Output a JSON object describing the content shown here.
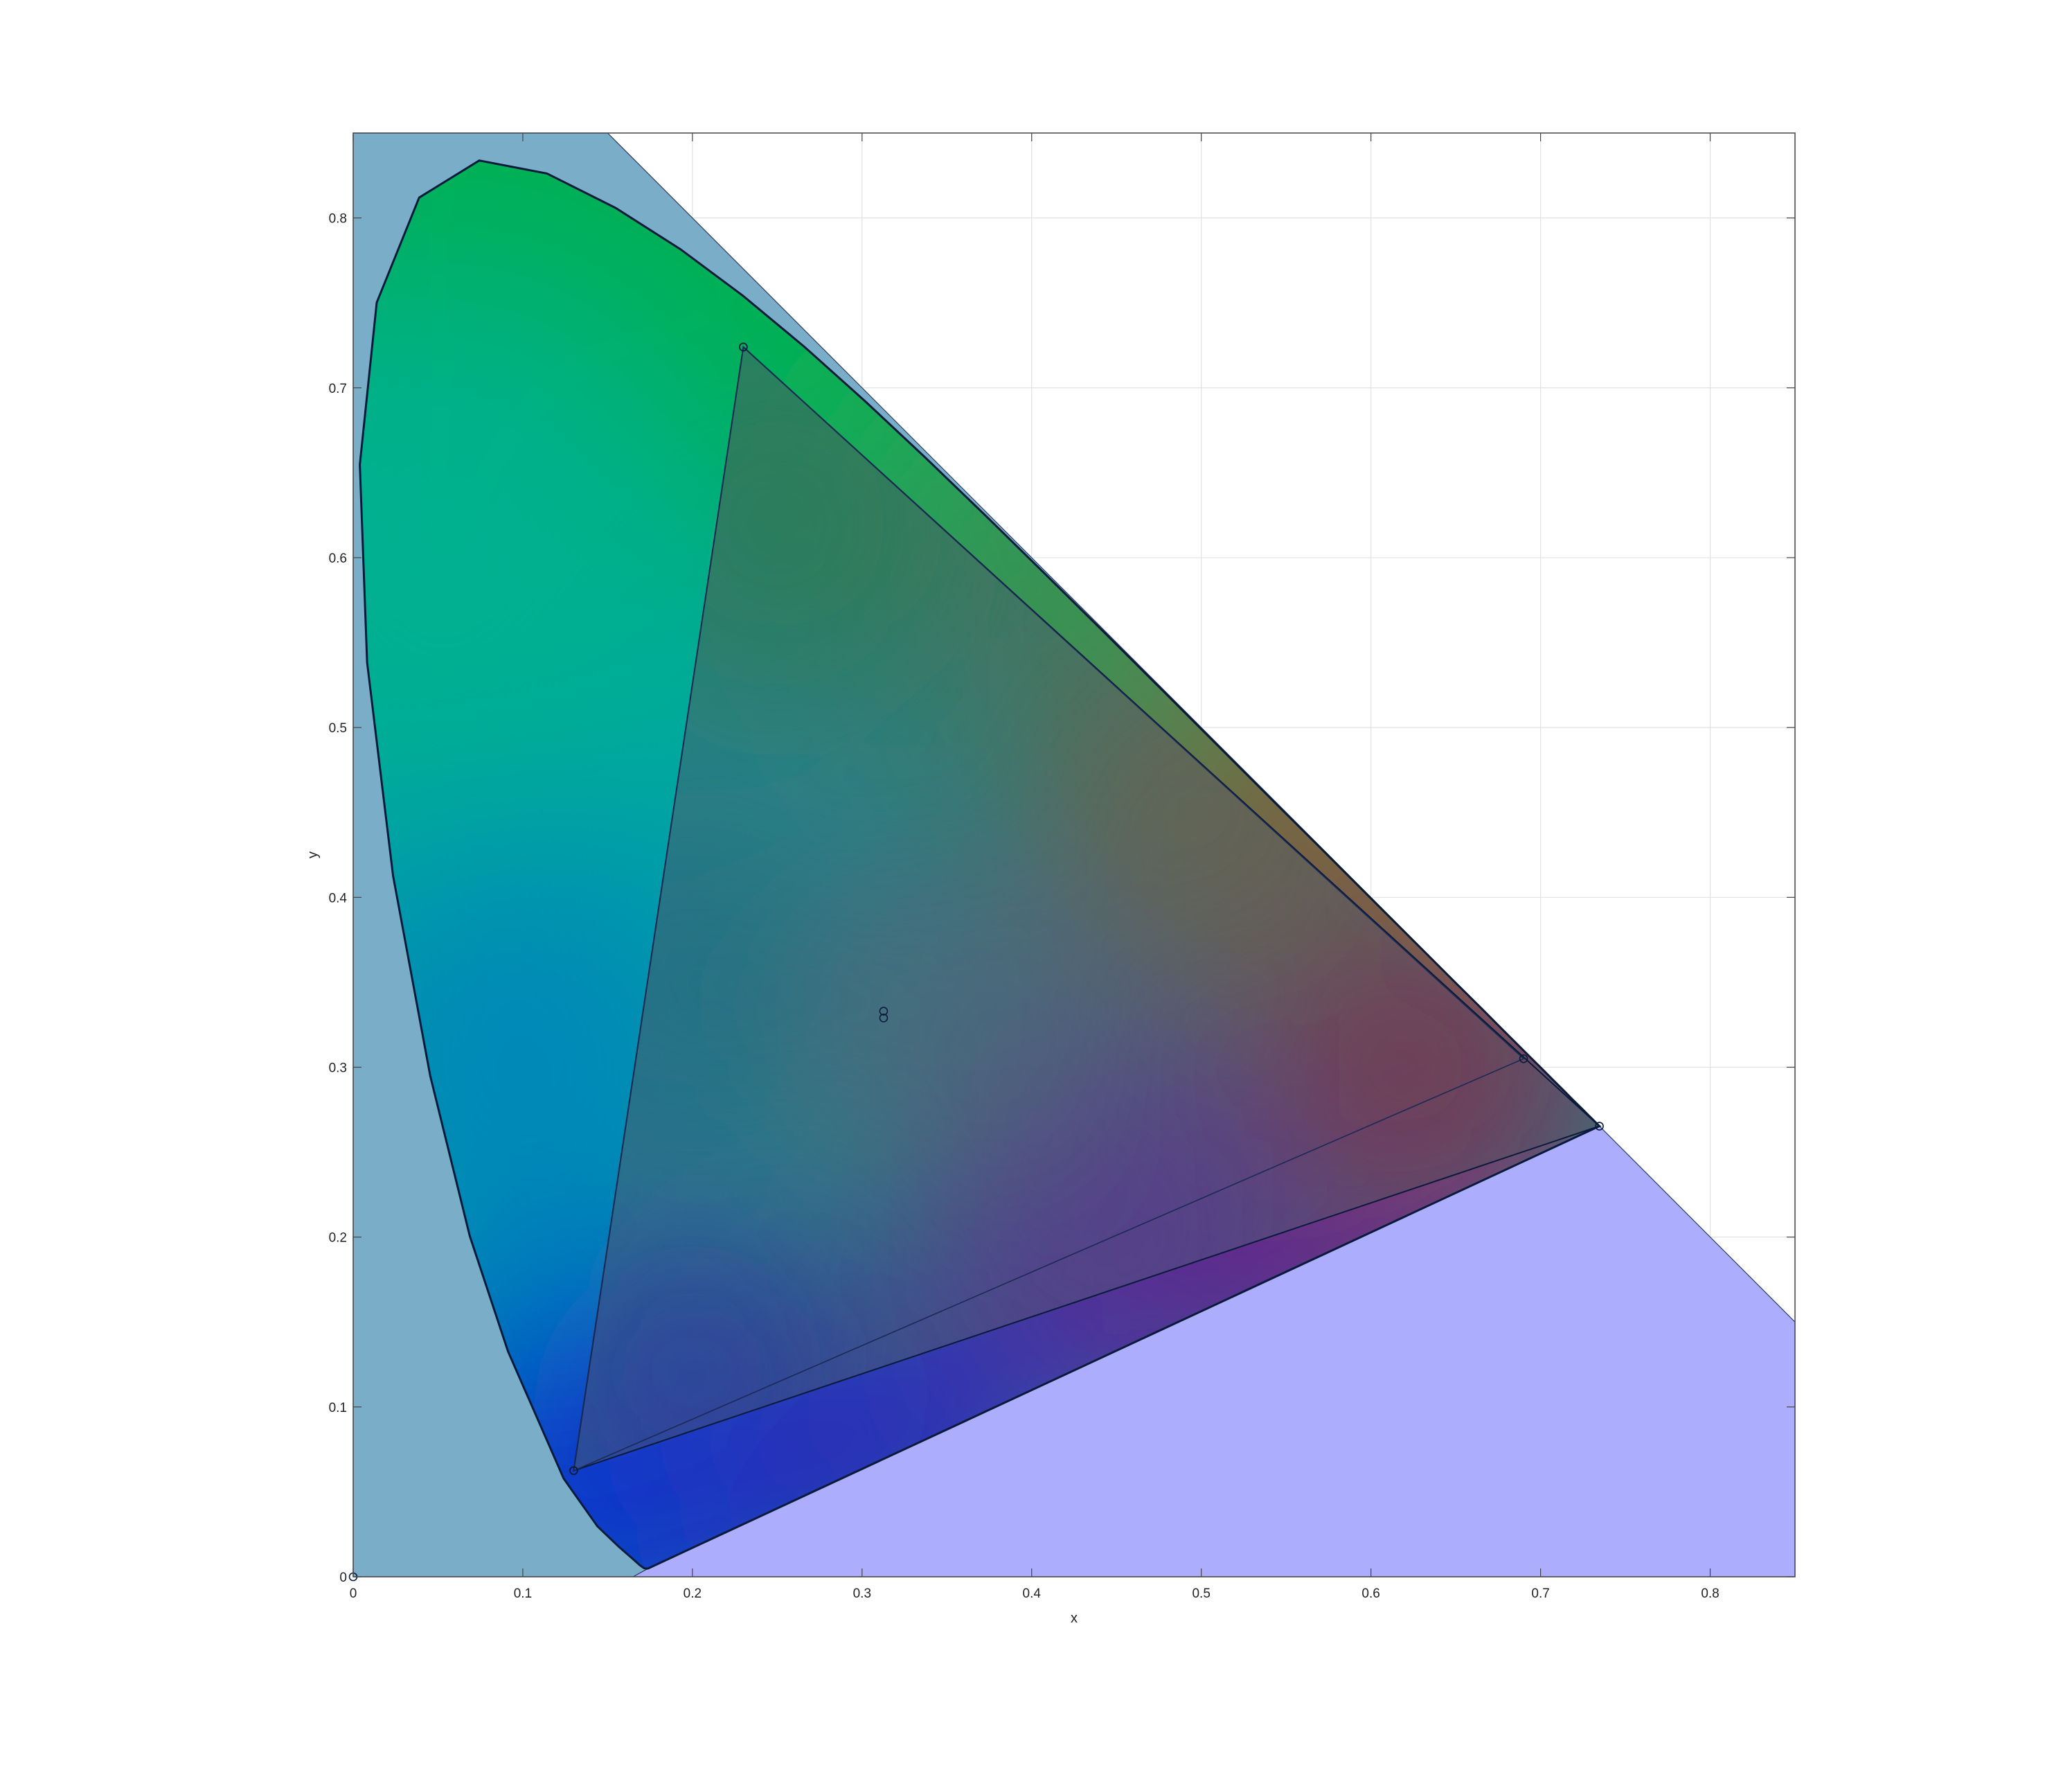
{
  "chart_data": {
    "type": "scatter",
    "title": "",
    "xlabel": "x",
    "ylabel": "y",
    "xlim": [
      0,
      0.85
    ],
    "ylim": [
      0,
      0.85
    ],
    "grid": true,
    "x_ticks": [
      0,
      0.1,
      0.2,
      0.3,
      0.4,
      0.5,
      0.6,
      0.7,
      0.8
    ],
    "y_ticks": [
      0,
      0.1,
      0.2,
      0.3,
      0.4,
      0.5,
      0.6,
      0.7,
      0.8
    ],
    "x_tick_labels": [
      "0",
      "0.1",
      "0.2",
      "0.3",
      "0.4",
      "0.5",
      "0.6",
      "0.7",
      "0.8"
    ],
    "y_tick_labels": [
      "0",
      "0.1",
      "0.2",
      "0.3",
      "0.4",
      "0.5",
      "0.6",
      "0.7",
      "0.8"
    ],
    "spectral_locus": [
      [
        0.1741,
        0.005
      ],
      [
        0.1738,
        0.0049
      ],
      [
        0.173,
        0.0048
      ],
      [
        0.1714,
        0.0051
      ],
      [
        0.1689,
        0.0069
      ],
      [
        0.1644,
        0.0109
      ],
      [
        0.1566,
        0.0177
      ],
      [
        0.144,
        0.0297
      ],
      [
        0.1241,
        0.0578
      ],
      [
        0.0913,
        0.1327
      ],
      [
        0.0687,
        0.2007
      ],
      [
        0.0454,
        0.295
      ],
      [
        0.0235,
        0.4127
      ],
      [
        0.0082,
        0.5384
      ],
      [
        0.0039,
        0.6548
      ],
      [
        0.0139,
        0.7502
      ],
      [
        0.0389,
        0.812
      ],
      [
        0.0743,
        0.8338
      ],
      [
        0.1142,
        0.8262
      ],
      [
        0.1547,
        0.8059
      ],
      [
        0.1929,
        0.7816
      ],
      [
        0.2296,
        0.7543
      ],
      [
        0.2658,
        0.7243
      ],
      [
        0.3016,
        0.6923
      ],
      [
        0.3373,
        0.6589
      ],
      [
        0.3731,
        0.6245
      ],
      [
        0.4087,
        0.5896
      ],
      [
        0.4441,
        0.5547
      ],
      [
        0.4788,
        0.5202
      ],
      [
        0.5125,
        0.4866
      ],
      [
        0.5448,
        0.4544
      ],
      [
        0.5752,
        0.4242
      ],
      [
        0.6029,
        0.3965
      ],
      [
        0.627,
        0.3725
      ],
      [
        0.6482,
        0.3514
      ],
      [
        0.6658,
        0.334
      ],
      [
        0.6801,
        0.3197
      ],
      [
        0.6915,
        0.3083
      ],
      [
        0.7006,
        0.2993
      ],
      [
        0.7079,
        0.292
      ],
      [
        0.714,
        0.2859
      ],
      [
        0.719,
        0.2809
      ],
      [
        0.723,
        0.277
      ],
      [
        0.726,
        0.274
      ],
      [
        0.7283,
        0.2717
      ],
      [
        0.73,
        0.27
      ],
      [
        0.7311,
        0.2689
      ],
      [
        0.732,
        0.268
      ],
      [
        0.7327,
        0.2673
      ],
      [
        0.7334,
        0.2666
      ],
      [
        0.734,
        0.266
      ],
      [
        0.7344,
        0.2656
      ],
      [
        0.7346,
        0.2654
      ],
      [
        0.7347,
        0.2653
      ]
    ],
    "gamut_triangle": [
      [
        0.7347,
        0.2653
      ],
      [
        0.23,
        0.724
      ],
      [
        0.13,
        0.0625
      ]
    ],
    "second_gamut_triangle": [
      [
        0.69,
        0.305
      ],
      [
        0.23,
        0.724
      ],
      [
        0.13,
        0.0625
      ]
    ],
    "white_points": [
      [
        0.3127,
        0.329
      ],
      [
        0.3127,
        0.333
      ]
    ],
    "origin_marker": [
      0,
      0
    ],
    "out_of_gamut_fill": [
      {
        "name": "",
        "color": "#7aaec8",
        "polygon": [
          [
            0,
            0
          ],
          [
            0,
            0.85
          ],
          [
            0.15,
            0.85
          ],
          [
            0.7347,
            0.2653
          ],
          [
            0.1741,
            0.005
          ],
          [
            0.17,
            0
          ]
        ]
      },
      {
        "name": "",
        "color": "#adadfd",
        "polygon": [
          [
            0.1741,
            0.005
          ],
          [
            0.7347,
            0.2653
          ],
          [
            0.85,
            0.15
          ],
          [
            0.85,
            0
          ],
          [
            0.165,
            0
          ]
        ]
      }
    ],
    "colors": {
      "green": "#00b050",
      "cyan": "#00a8a0",
      "blue": "#0030d0",
      "red": "#8a1f3a",
      "magenta": "#7a2a80",
      "white_point": "#6a6a80",
      "outline": "#0a1a3a",
      "grid": "#e2e2e2"
    }
  }
}
